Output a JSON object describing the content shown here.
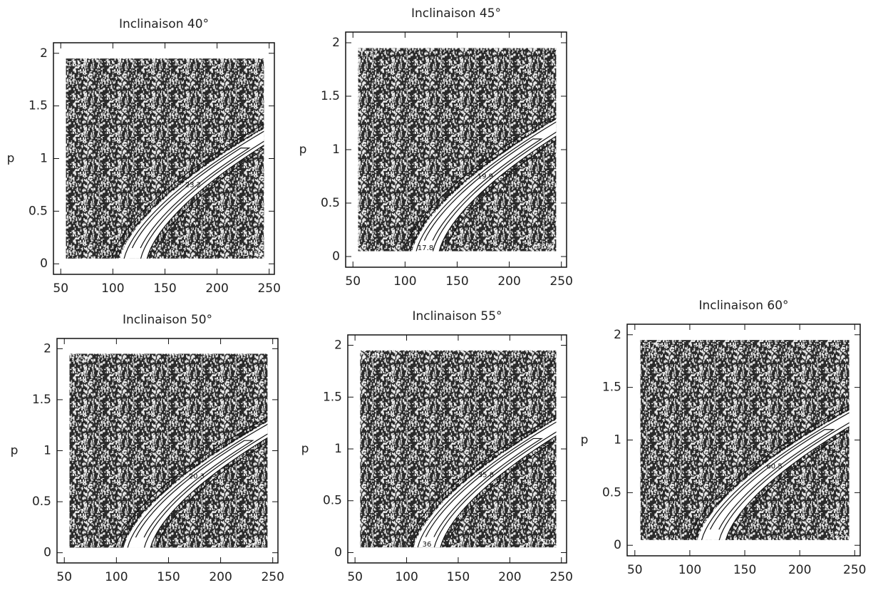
{
  "chart_data": [
    {
      "type": "contour",
      "title": "Inclinaison 40°",
      "y_label": "p",
      "xlim": [
        43,
        255
      ],
      "ylim": [
        -0.1,
        2.1
      ],
      "xticks": [
        50,
        100,
        150,
        200,
        250
      ],
      "yticks": [
        0,
        0.5,
        1,
        1.5,
        2
      ],
      "corner_labels": [
        1317,
        5429
      ],
      "contour_labels": [
        23.2
      ]
    },
    {
      "type": "contour",
      "title": "Inclinaison 45°",
      "y_label": "p",
      "xlim": [
        43,
        255
      ],
      "ylim": [
        -0.1,
        2.1
      ],
      "xticks": [
        50,
        100,
        150,
        200,
        250
      ],
      "yticks": [
        0,
        0.5,
        1,
        1.5,
        2
      ],
      "corner_labels": [
        1312,
        5899
      ],
      "contour_labels": [
        19.9,
        17.8
      ]
    },
    {
      "type": "contour",
      "title": "Inclinaison 50°",
      "y_label": "p",
      "xlim": [
        43,
        255
      ],
      "ylim": [
        -0.1,
        2.1
      ],
      "xticks": [
        50,
        100,
        150,
        200,
        250
      ],
      "yticks": [
        0,
        0.5,
        1,
        1.5,
        2
      ],
      "corner_labels": [
        1350,
        2794
      ],
      "contour_labels": [
        20.3
      ]
    },
    {
      "type": "contour",
      "title": "Inclinaison 55°",
      "y_label": "p",
      "xlim": [
        43,
        255
      ],
      "ylim": [
        -0.1,
        2.1
      ],
      "xticks": [
        50,
        100,
        150,
        200,
        250
      ],
      "yticks": [
        0,
        0.5,
        1,
        1.5,
        2
      ],
      "corner_labels": [
        1347,
        2507
      ],
      "contour_labels": [
        35.8,
        36
      ]
    },
    {
      "type": "contour",
      "title": "Inclinaison 60°",
      "y_label": "p",
      "xlim": [
        43,
        255
      ],
      "ylim": [
        -0.1,
        2.1
      ],
      "xticks": [
        50,
        100,
        150,
        200,
        250
      ],
      "yticks": [
        0,
        0.5,
        1,
        1.5,
        2
      ],
      "corner_labels": [
        1374,
        2255
      ],
      "contour_labels": [
        60.5
      ]
    }
  ]
}
